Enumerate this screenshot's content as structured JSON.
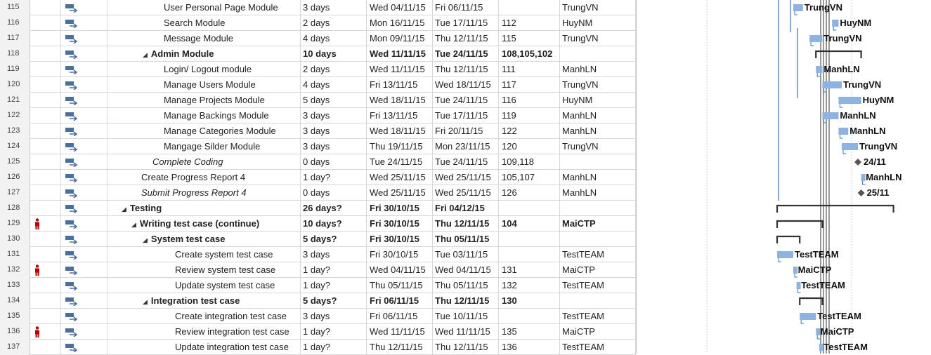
{
  "rows": [
    {
      "id": "115",
      "name": "User Personal Page Module",
      "duration": "3 days",
      "start": "Wed 04/11/15",
      "finish": "Fri 06/11/15",
      "pred": "",
      "res": "TrungVN",
      "indent": 4,
      "style": "normal",
      "summary": false,
      "person": false
    },
    {
      "id": "116",
      "name": "Search Module",
      "duration": "2 days",
      "start": "Mon 16/11/15",
      "finish": "Tue 17/11/15",
      "pred": "112",
      "res": "HuyNM",
      "indent": 4,
      "style": "normal",
      "summary": false,
      "person": false
    },
    {
      "id": "117",
      "name": "Message Module",
      "duration": "4 days",
      "start": "Mon 09/11/15",
      "finish": "Thu 12/11/15",
      "pred": "115",
      "res": "TrungVN",
      "indent": 4,
      "style": "normal",
      "summary": false,
      "person": false
    },
    {
      "id": "118",
      "name": "Admin Module",
      "duration": "10 days",
      "start": "Wed 11/11/15",
      "finish": "Tue 24/11/15",
      "pred": "108,105,102",
      "res": "",
      "indent": 3,
      "style": "bold",
      "summary": true,
      "person": false
    },
    {
      "id": "119",
      "name": "Login/ Logout module",
      "duration": "2 days",
      "start": "Wed 11/11/15",
      "finish": "Thu 12/11/15",
      "pred": "111",
      "res": "ManhLN",
      "indent": 4,
      "style": "normal",
      "summary": false,
      "person": false
    },
    {
      "id": "120",
      "name": "Manage Users Module",
      "duration": "4 days",
      "start": "Fri 13/11/15",
      "finish": "Wed 18/11/15",
      "pred": "117",
      "res": "TrungVN",
      "indent": 4,
      "style": "normal",
      "summary": false,
      "person": false
    },
    {
      "id": "121",
      "name": "Manage Projects Module",
      "duration": "5 days",
      "start": "Wed 18/11/15",
      "finish": "Tue 24/11/15",
      "pred": "116",
      "res": "HuyNM",
      "indent": 4,
      "style": "normal",
      "summary": false,
      "person": false
    },
    {
      "id": "122",
      "name": "Manage Backings Module",
      "duration": "3 days",
      "start": "Fri 13/11/15",
      "finish": "Tue 17/11/15",
      "pred": "119",
      "res": "ManhLN",
      "indent": 4,
      "style": "normal",
      "summary": false,
      "person": false
    },
    {
      "id": "123",
      "name": "Manage Categories Module",
      "duration": "3 days",
      "start": "Wed 18/11/15",
      "finish": "Fri 20/11/15",
      "pred": "122",
      "res": "ManhLN",
      "indent": 4,
      "style": "normal",
      "summary": false,
      "person": false
    },
    {
      "id": "124",
      "name": "Mangage Silder Module",
      "duration": "3 days",
      "start": "Thu 19/11/15",
      "finish": "Mon 23/11/15",
      "pred": "120",
      "res": "TrungVN",
      "indent": 4,
      "style": "normal",
      "summary": false,
      "person": false
    },
    {
      "id": "125",
      "name": "Complete Coding",
      "duration": "0 days",
      "start": "Tue 24/11/15",
      "finish": "Tue 24/11/15",
      "pred": "109,118",
      "res": "",
      "indent": 3,
      "style": "italic",
      "summary": false,
      "person": false
    },
    {
      "id": "126",
      "name": "Create Progress Report 4",
      "duration": "1 day?",
      "start": "Wed 25/11/15",
      "finish": "Wed 25/11/15",
      "pred": "105,107",
      "res": "ManhLN",
      "indent": 2,
      "style": "normal",
      "summary": false,
      "person": false
    },
    {
      "id": "127",
      "name": "Submit Progress Report 4",
      "duration": "0 days",
      "start": "Wed 25/11/15",
      "finish": "Wed 25/11/15",
      "pred": "126",
      "res": "ManhLN",
      "indent": 2,
      "style": "italic",
      "summary": false,
      "person": false
    },
    {
      "id": "128",
      "name": "Testing",
      "duration": "26 days?",
      "start": "Fri 30/10/15",
      "finish": "Fri 04/12/15",
      "pred": "",
      "res": "",
      "indent": 1,
      "style": "bold",
      "summary": true,
      "person": false
    },
    {
      "id": "129",
      "name": "Writing test case (continue)",
      "duration": "10 days?",
      "start": "Fri 30/10/15",
      "finish": "Thu 12/11/15",
      "pred": "104",
      "res": "MaiCTP",
      "indent": 2,
      "style": "bold",
      "summary": true,
      "person": true
    },
    {
      "id": "130",
      "name": "System test case",
      "duration": "5 days?",
      "start": "Fri 30/10/15",
      "finish": "Thu 05/11/15",
      "pred": "",
      "res": "",
      "indent": 3,
      "style": "bold",
      "summary": true,
      "person": false
    },
    {
      "id": "131",
      "name": "Create system test case",
      "duration": "3 days",
      "start": "Fri 30/10/15",
      "finish": "Tue 03/11/15",
      "pred": "",
      "res": "TestTEAM",
      "indent": 5,
      "style": "normal",
      "summary": false,
      "person": false
    },
    {
      "id": "132",
      "name": "Review system test case",
      "duration": "1 day?",
      "start": "Wed 04/11/15",
      "finish": "Wed 04/11/15",
      "pred": "131",
      "res": "MaiCTP",
      "indent": 5,
      "style": "normal",
      "summary": false,
      "person": true
    },
    {
      "id": "133",
      "name": "Update system test case",
      "duration": "1 day?",
      "start": "Thu 05/11/15",
      "finish": "Thu 05/11/15",
      "pred": "132",
      "res": "TestTEAM",
      "indent": 5,
      "style": "normal",
      "summary": false,
      "person": false
    },
    {
      "id": "134",
      "name": "Integration test case",
      "duration": "5 days?",
      "start": "Fri 06/11/15",
      "finish": "Thu 12/11/15",
      "pred": "130",
      "res": "",
      "indent": 3,
      "style": "bold",
      "summary": true,
      "person": false
    },
    {
      "id": "135",
      "name": "Create integration test case",
      "duration": "3 days",
      "start": "Fri 06/11/15",
      "finish": "Tue 10/11/15",
      "pred": "",
      "res": "TestTEAM",
      "indent": 5,
      "style": "normal",
      "summary": false,
      "person": false
    },
    {
      "id": "136",
      "name": "Review integration test case",
      "duration": "1 day?",
      "start": "Wed 11/11/15",
      "finish": "Wed 11/11/15",
      "pred": "135",
      "res": "MaiCTP",
      "indent": 5,
      "style": "normal",
      "summary": false,
      "person": true
    },
    {
      "id": "137",
      "name": "Update integration test case",
      "duration": "1 day?",
      "start": "Thu 12/11/15",
      "finish": "Thu 12/11/15",
      "pred": "136",
      "res": "TestTEAM",
      "indent": 5,
      "style": "normal",
      "summary": false,
      "person": false
    }
  ],
  "gantt_labels": [
    {
      "row": 0,
      "text": "TrungVN"
    },
    {
      "row": 1,
      "text": "HuyNM"
    },
    {
      "row": 2,
      "text": "TrungVN"
    },
    {
      "row": 4,
      "text": "ManhLN"
    },
    {
      "row": 5,
      "text": "TrungVN"
    },
    {
      "row": 6,
      "text": "HuyNM"
    },
    {
      "row": 7,
      "text": "ManhLN"
    },
    {
      "row": 8,
      "text": "ManhLN"
    },
    {
      "row": 9,
      "text": "TrungVN"
    },
    {
      "row": 10,
      "text": "24/11"
    },
    {
      "row": 11,
      "text": "ManhLN"
    },
    {
      "row": 12,
      "text": "25/11"
    },
    {
      "row": 16,
      "text": "TestTEAM"
    },
    {
      "row": 17,
      "text": "MaiCTP"
    },
    {
      "row": 18,
      "text": "TestTEAM"
    },
    {
      "row": 20,
      "text": "TestTEAM"
    },
    {
      "row": 21,
      "text": "MaiCTP"
    },
    {
      "row": 22,
      "text": "TestTEAM"
    }
  ],
  "colors": {
    "bar": "#8db3e2",
    "link": "#2e75c9",
    "summary": "#333333",
    "milestone": "#555555",
    "grid": "#d8d8d8",
    "person": "#c00000"
  }
}
